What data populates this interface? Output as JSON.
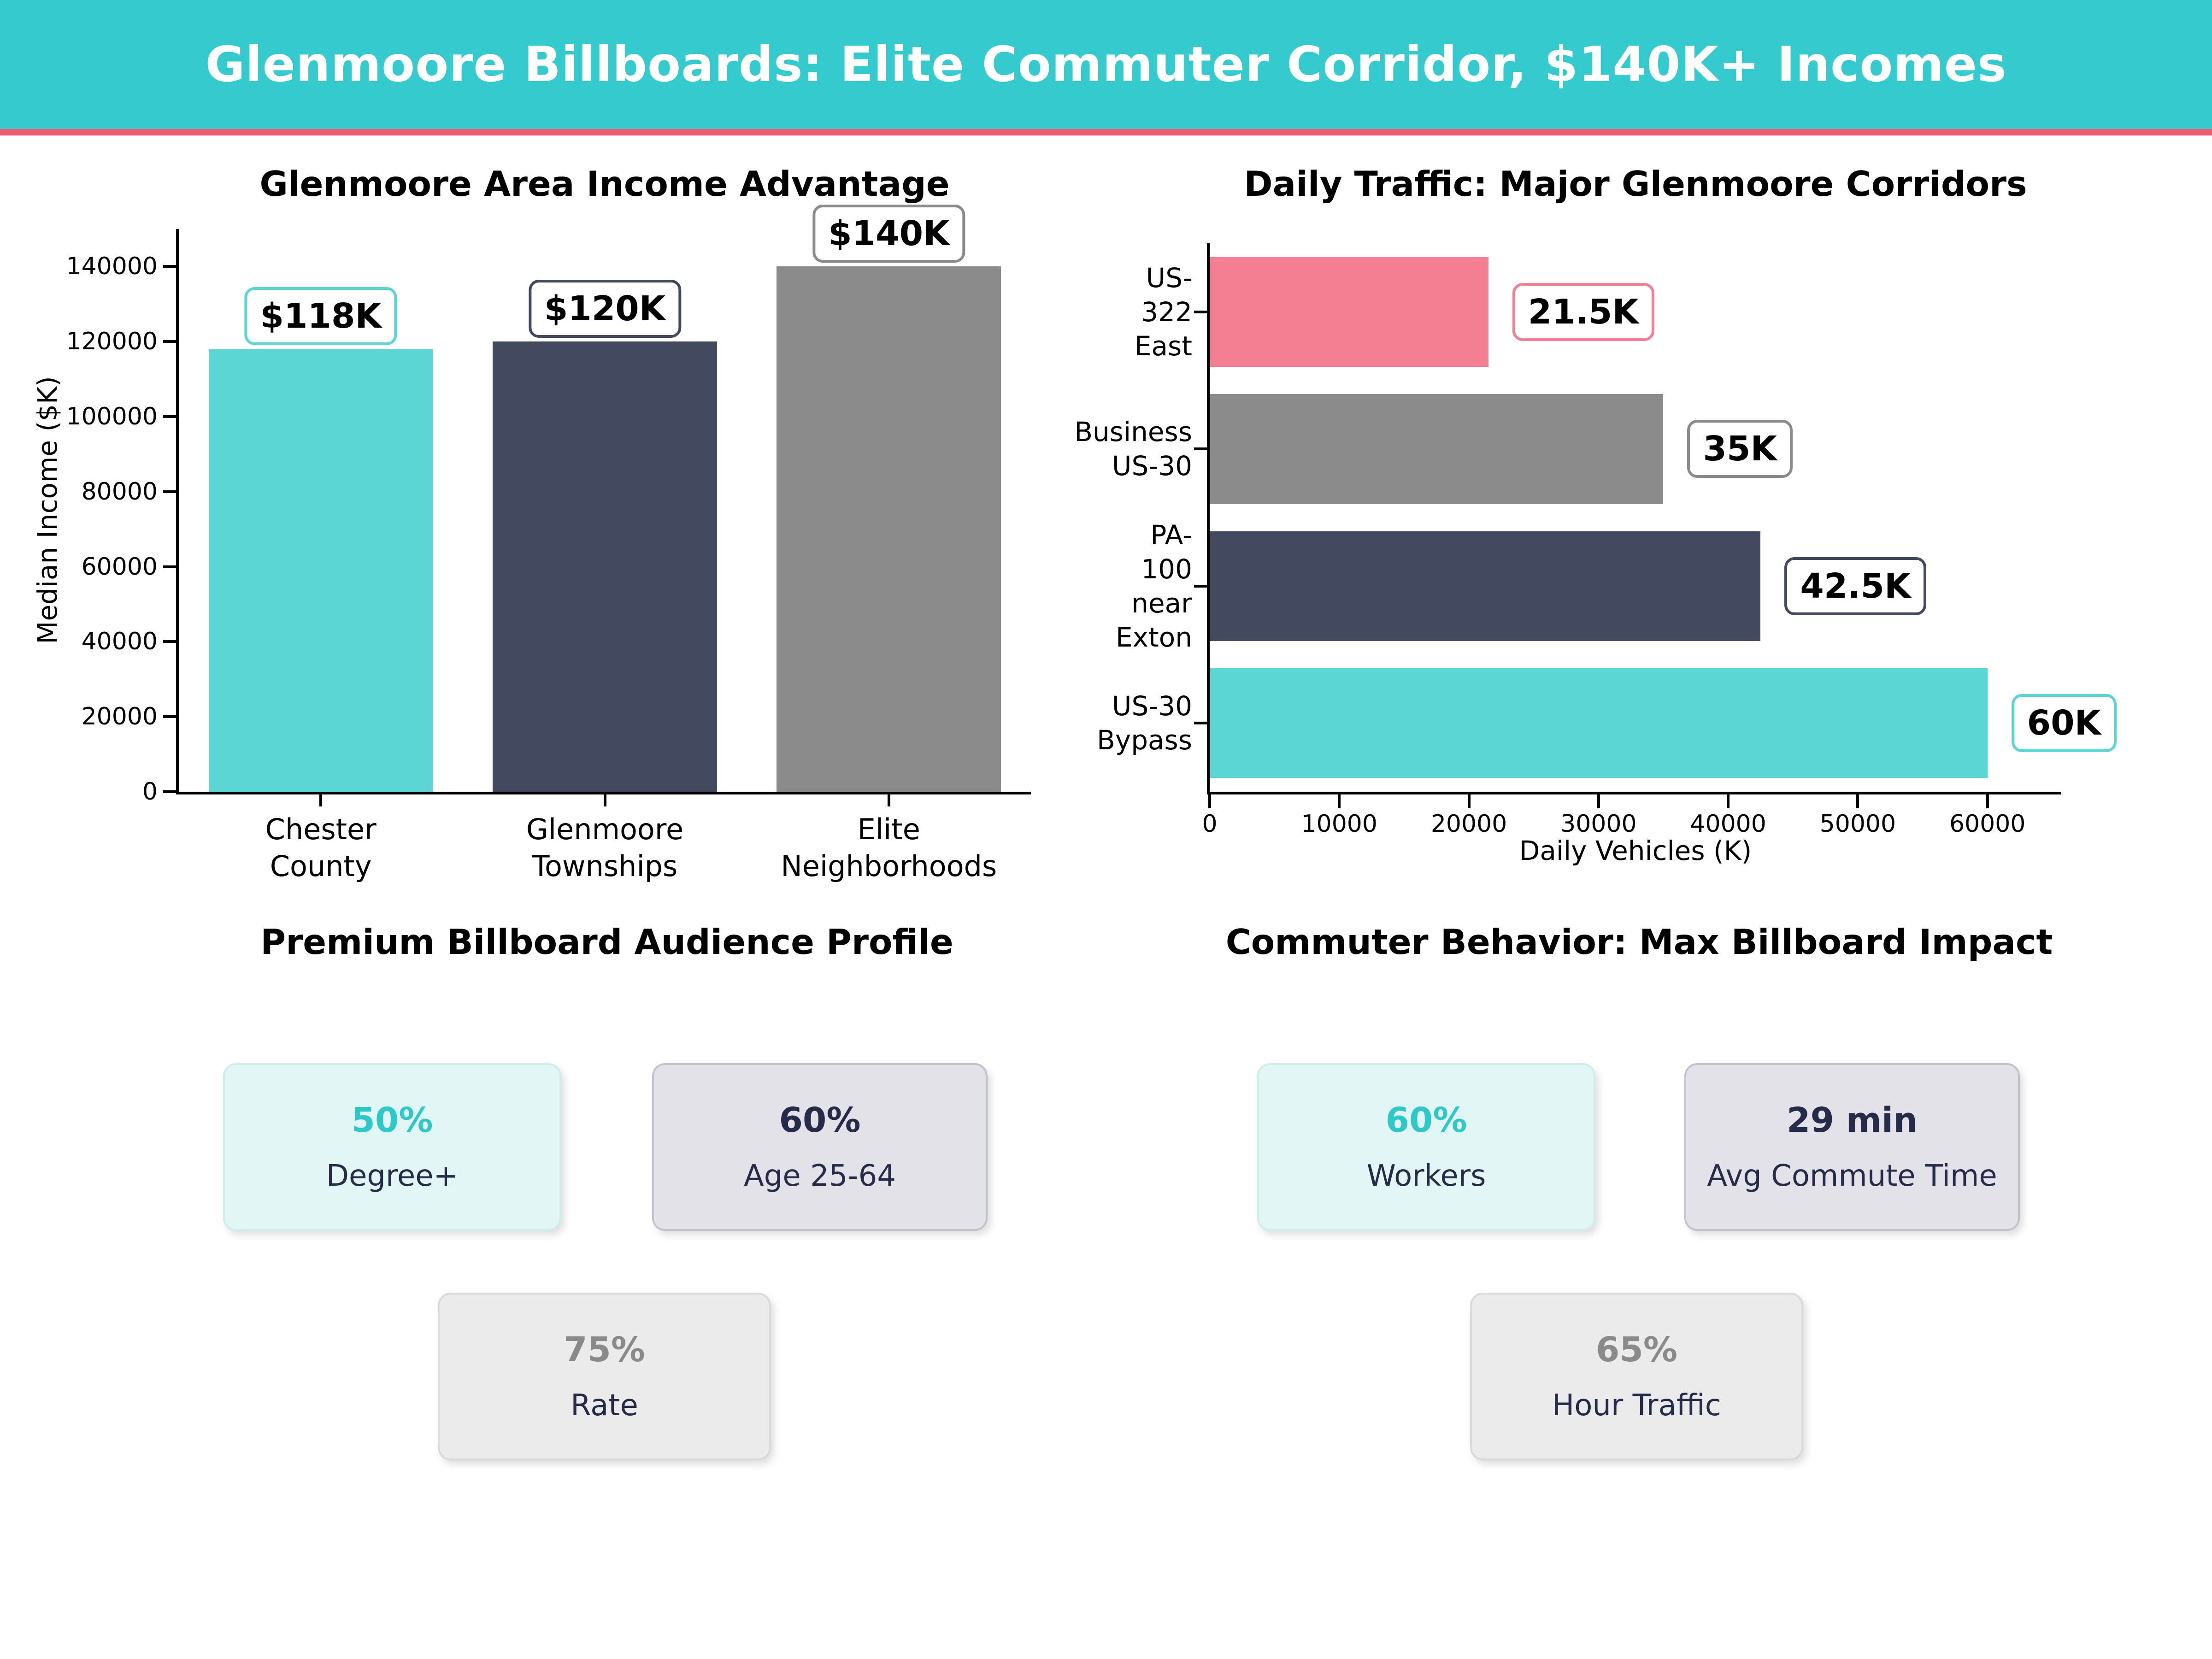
{
  "header": {
    "title": "Glenmoore Billboards: Elite Commuter Corridor, $140K+ Incomes",
    "bg_color": "#35cbce",
    "divider_color": "#eb5c72"
  },
  "colors": {
    "teal": "#5cd5d5",
    "navy": "#434a60",
    "gray": "#8b8b8b",
    "pink": "#f57f92",
    "text_navy": "#262b49"
  },
  "chart_data": [
    {
      "type": "bar",
      "title": "Glenmoore Area Income Advantage",
      "xlabel": "",
      "ylabel": "Median Income ($K)",
      "categories": [
        "Chester\nCounty",
        "Glenmoore\nTownships",
        "Elite\nNeighborhoods"
      ],
      "values": [
        118000,
        120000,
        140000
      ],
      "value_labels": [
        "$118K",
        "$120K",
        "$140K"
      ],
      "bar_colors": [
        "#5cd5d5",
        "#434a60",
        "#8b8b8b"
      ],
      "ylim": [
        0,
        150000
      ],
      "yticks": [
        0,
        20000,
        40000,
        60000,
        80000,
        100000,
        120000,
        140000
      ],
      "grid": false,
      "legend": null
    },
    {
      "type": "bar-horizontal",
      "title": "Daily Traffic: Major Glenmoore Corridors",
      "xlabel": "Daily Vehicles (K)",
      "ylabel": "",
      "categories": [
        "US-322 East",
        "Business\nUS-30",
        "PA-100 near\nExton",
        "US-30 Bypass"
      ],
      "values": [
        21500,
        35000,
        42500,
        60000
      ],
      "value_labels": [
        "21.5K",
        "35K",
        "42.5K",
        "60K"
      ],
      "bar_colors": [
        "#f57f92",
        "#8b8b8b",
        "#434a60",
        "#5cd5d5"
      ],
      "xlim": [
        0,
        65700
      ],
      "xticks": [
        0,
        10000,
        20000,
        30000,
        40000,
        50000,
        60000
      ],
      "grid": false,
      "legend": null
    }
  ],
  "sections": [
    {
      "title": "Premium Billboard Audience Profile",
      "cards": [
        {
          "value": "50%",
          "label": "Degree+",
          "value_color": "#2fc8c8",
          "bg": "#e3f6f6",
          "border": "#cdeeee"
        },
        {
          "value": "60%",
          "label": "Age 25-64",
          "value_color": "#262b49",
          "bg": "#e2e2e8",
          "border": "#c2c2cc"
        },
        {
          "value": "75%",
          "label": "Rate",
          "value_color": "#8a8a8a",
          "bg": "#ebebeb",
          "border": "#d9d9d9"
        }
      ]
    },
    {
      "title": "Commuter Behavior: Max Billboard Impact",
      "cards": [
        {
          "value": "60%",
          "label": "Workers",
          "value_color": "#2fc8c8",
          "bg": "#e3f6f6",
          "border": "#cdeeee"
        },
        {
          "value": "29 min",
          "label": "Avg Commute Time",
          "value_color": "#262b49",
          "bg": "#e2e2e8",
          "border": "#c2c2cc"
        },
        {
          "value": "65%",
          "label": "Hour Traffic",
          "value_color": "#8a8a8a",
          "bg": "#ebebeb",
          "border": "#d9d9d9"
        }
      ]
    }
  ]
}
